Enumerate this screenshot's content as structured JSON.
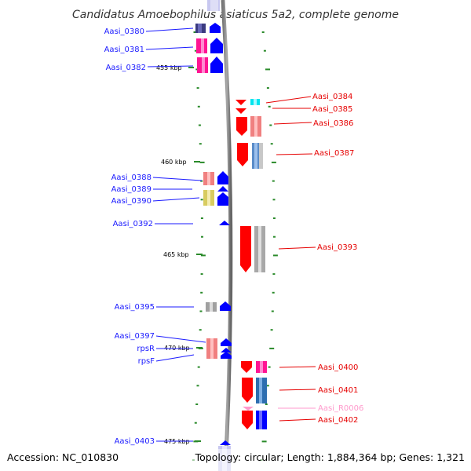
{
  "title": "Candidatus Amoebophilus asiaticus 5a2, complete genome",
  "ruler": [
    "455 kbp",
    "460 kbp",
    "465 kbp",
    "470 kbp",
    "475 kbp"
  ],
  "genes_left": [
    "Aasi_0380",
    "Aasi_0381",
    "Aasi_0382",
    "Aasi_0388",
    "Aasi_0389",
    "Aasi_0390",
    "Aasi_0392",
    "Aasi_0395",
    "Aasi_0397",
    "rpsR",
    "rpsF",
    "Aasi_0403"
  ],
  "genes_right": [
    "Aasi_0384",
    "Aasi_0385",
    "Aasi_0386",
    "Aasi_0387",
    "Aasi_0393",
    "Aasi_0400",
    "Aasi_0401",
    "Aasi_R0006",
    "Aasi_0402"
  ],
  "footer": {
    "accession": "Accession: NC_010830",
    "topology": "Topology: circular; Length: 1,884,364 bp; Genes: 1,321"
  },
  "colors": {
    "forward_label": "#1a1aff",
    "reverse_label": "#e60000",
    "rna_label": "#ff99cc",
    "tick": "#2a8a2a"
  }
}
